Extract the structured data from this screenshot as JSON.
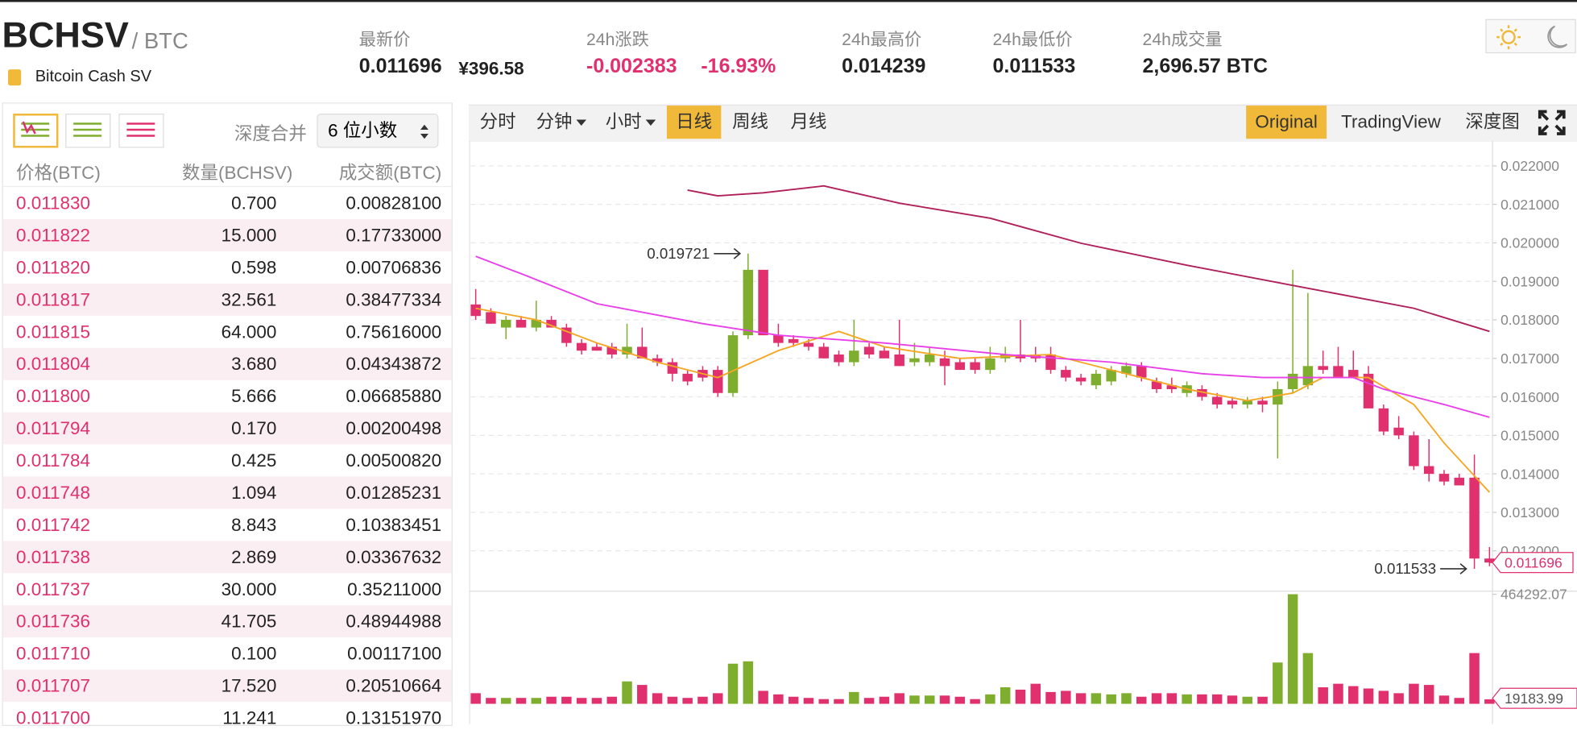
{
  "header": {
    "symbol": "BCHSV",
    "quote": "/ BTC",
    "name": "Bitcoin Cash SV",
    "stats": [
      {
        "label": "最新价",
        "value": "0.011696",
        "extra": "¥396.58"
      },
      {
        "label": "24h涨跌",
        "value": "-0.002383",
        "extra": "-16.93%"
      },
      {
        "label": "24h最高价",
        "value": "0.014239"
      },
      {
        "label": "24h最低价",
        "value": "0.011533"
      },
      {
        "label": "24h成交量",
        "value": "2,696.57 BTC"
      }
    ]
  },
  "orderbook": {
    "merge_label": "深度合并",
    "merge_value": "6 位小数",
    "columns": [
      "价格(BTC)",
      "数量(BCHSV)",
      "成交额(BTC)"
    ],
    "rows": [
      [
        "0.011830",
        "0.700",
        "0.00828100"
      ],
      [
        "0.011822",
        "15.000",
        "0.17733000"
      ],
      [
        "0.011820",
        "0.598",
        "0.00706836"
      ],
      [
        "0.011817",
        "32.561",
        "0.38477334"
      ],
      [
        "0.011815",
        "64.000",
        "0.75616000"
      ],
      [
        "0.011804",
        "3.680",
        "0.04343872"
      ],
      [
        "0.011800",
        "5.666",
        "0.06685880"
      ],
      [
        "0.011794",
        "0.170",
        "0.00200498"
      ],
      [
        "0.011784",
        "0.425",
        "0.00500820"
      ],
      [
        "0.011748",
        "1.094",
        "0.01285231"
      ],
      [
        "0.011742",
        "8.843",
        "0.10383451"
      ],
      [
        "0.011738",
        "2.869",
        "0.03367632"
      ],
      [
        "0.011737",
        "30.000",
        "0.35211000"
      ],
      [
        "0.011736",
        "41.705",
        "0.48944988"
      ],
      [
        "0.011710",
        "0.100",
        "0.00117100"
      ],
      [
        "0.011707",
        "17.520",
        "0.20510664"
      ],
      [
        "0.011700",
        "11.241",
        "0.13151970"
      ]
    ]
  },
  "toolbar": {
    "intervals": [
      "分时",
      "分钟",
      "小时",
      "日线",
      "周线",
      "月线"
    ],
    "active_interval": 3,
    "views": [
      "Original",
      "TradingView",
      "深度图"
    ],
    "active_view": 0
  },
  "chart_data": {
    "type": "candlestick",
    "up_color": "#7fae2e",
    "down_color": "#e0306e",
    "ylim": [
      0.01116,
      0.0226
    ],
    "yticks": [
      {
        "value": 0.012,
        "label": "0.012000"
      },
      {
        "value": 0.013,
        "label": "0.013000"
      },
      {
        "value": 0.014,
        "label": "0.014000"
      },
      {
        "value": 0.015,
        "label": "0.015000"
      },
      {
        "value": 0.016,
        "label": "0.016000"
      },
      {
        "value": 0.017,
        "label": "0.017000"
      },
      {
        "value": 0.018,
        "label": "0.018000"
      },
      {
        "value": 0.019,
        "label": "0.019000"
      },
      {
        "value": 0.02,
        "label": "0.020000"
      },
      {
        "value": 0.021,
        "label": "0.021000"
      },
      {
        "value": 0.022,
        "label": "0.022000"
      }
    ],
    "grid": true,
    "candles": [
      [
        0.0184,
        0.0188,
        0.018,
        0.0181
      ],
      [
        0.0182,
        0.0183,
        0.0179,
        0.0179
      ],
      [
        0.0178,
        0.0181,
        0.0175,
        0.018
      ],
      [
        0.018,
        0.0181,
        0.0178,
        0.0178
      ],
      [
        0.0178,
        0.0185,
        0.0177,
        0.018
      ],
      [
        0.018,
        0.0181,
        0.0178,
        0.0178
      ],
      [
        0.0178,
        0.0179,
        0.0173,
        0.0174
      ],
      [
        0.0174,
        0.0175,
        0.0171,
        0.0172
      ],
      [
        0.0173,
        0.0174,
        0.0172,
        0.0172
      ],
      [
        0.0173,
        0.0174,
        0.017,
        0.0171
      ],
      [
        0.0171,
        0.0179,
        0.017,
        0.0173
      ],
      [
        0.0173,
        0.0178,
        0.017,
        0.017
      ],
      [
        0.017,
        0.0171,
        0.0168,
        0.0169
      ],
      [
        0.0169,
        0.017,
        0.0164,
        0.0166
      ],
      [
        0.0166,
        0.0167,
        0.0163,
        0.0164
      ],
      [
        0.0167,
        0.0168,
        0.0164,
        0.0165
      ],
      [
        0.0167,
        0.0168,
        0.016,
        0.0161
      ],
      [
        0.0161,
        0.0177,
        0.016,
        0.0176
      ],
      [
        0.0176,
        0.019721,
        0.0175,
        0.0193
      ],
      [
        0.0193,
        0.0193,
        0.0176,
        0.0176
      ],
      [
        0.0176,
        0.0179,
        0.0173,
        0.0174
      ],
      [
        0.0175,
        0.0176,
        0.0173,
        0.0174
      ],
      [
        0.0174,
        0.0175,
        0.0172,
        0.0173
      ],
      [
        0.0173,
        0.0174,
        0.017,
        0.017
      ],
      [
        0.0171,
        0.0172,
        0.0168,
        0.0169
      ],
      [
        0.0169,
        0.018,
        0.0168,
        0.0172
      ],
      [
        0.0173,
        0.0174,
        0.017,
        0.0171
      ],
      [
        0.0172,
        0.0173,
        0.017,
        0.017
      ],
      [
        0.0171,
        0.018,
        0.0168,
        0.0168
      ],
      [
        0.0169,
        0.0174,
        0.0168,
        0.017
      ],
      [
        0.0169,
        0.0173,
        0.0168,
        0.0171
      ],
      [
        0.017,
        0.0172,
        0.0163,
        0.0168
      ],
      [
        0.0169,
        0.017,
        0.0167,
        0.0167
      ],
      [
        0.0169,
        0.017,
        0.0166,
        0.0167
      ],
      [
        0.0167,
        0.0173,
        0.0166,
        0.017
      ],
      [
        0.017,
        0.0173,
        0.0169,
        0.0171
      ],
      [
        0.0171,
        0.018,
        0.0169,
        0.017
      ],
      [
        0.0171,
        0.0173,
        0.0169,
        0.017
      ],
      [
        0.0171,
        0.0173,
        0.0166,
        0.0167
      ],
      [
        0.0167,
        0.0168,
        0.0164,
        0.0165
      ],
      [
        0.0165,
        0.0166,
        0.0163,
        0.0164
      ],
      [
        0.0163,
        0.0167,
        0.0162,
        0.0166
      ],
      [
        0.0164,
        0.0168,
        0.0163,
        0.0167
      ],
      [
        0.0166,
        0.0169,
        0.0165,
        0.0168
      ],
      [
        0.0168,
        0.0169,
        0.0164,
        0.0165
      ],
      [
        0.0164,
        0.0165,
        0.0161,
        0.0162
      ],
      [
        0.0163,
        0.0165,
        0.0161,
        0.0162
      ],
      [
        0.0161,
        0.0164,
        0.016,
        0.0163
      ],
      [
        0.0162,
        0.0163,
        0.0159,
        0.016
      ],
      [
        0.016,
        0.0161,
        0.0157,
        0.0158
      ],
      [
        0.0159,
        0.016,
        0.0157,
        0.0158
      ],
      [
        0.0158,
        0.016,
        0.0157,
        0.0159
      ],
      [
        0.0159,
        0.016,
        0.0156,
        0.0158
      ],
      [
        0.0158,
        0.0164,
        0.0144,
        0.0162
      ],
      [
        0.0162,
        0.0193,
        0.0161,
        0.0166
      ],
      [
        0.0163,
        0.0187,
        0.0162,
        0.0168
      ],
      [
        0.0168,
        0.0172,
        0.0166,
        0.0167
      ],
      [
        0.0168,
        0.0173,
        0.0165,
        0.0165
      ],
      [
        0.0167,
        0.0172,
        0.0165,
        0.0165
      ],
      [
        0.0166,
        0.0168,
        0.0157,
        0.0157
      ],
      [
        0.0157,
        0.0158,
        0.015,
        0.0151
      ],
      [
        0.0152,
        0.0155,
        0.0149,
        0.015
      ],
      [
        0.015,
        0.0151,
        0.0141,
        0.0142
      ],
      [
        0.0142,
        0.0149,
        0.0138,
        0.014
      ],
      [
        0.014,
        0.0141,
        0.0137,
        0.0138
      ],
      [
        0.0139,
        0.014,
        0.0137,
        0.0137
      ],
      [
        0.0139,
        0.0145,
        0.011533,
        0.0118
      ],
      [
        0.0118,
        0.0121,
        0.0116,
        0.011696
      ]
    ],
    "volume_ylim": [
      0,
      464292.07
    ],
    "volume_yticks": [
      464292.07
    ],
    "volumes": [
      45000,
      25000,
      25000,
      25000,
      25000,
      30000,
      30000,
      25000,
      25000,
      30000,
      95000,
      80000,
      45000,
      30000,
      25000,
      30000,
      45000,
      170000,
      180000,
      55000,
      40000,
      30000,
      25000,
      20000,
      20000,
      50000,
      25000,
      30000,
      45000,
      35000,
      35000,
      35000,
      30000,
      20000,
      40000,
      70000,
      60000,
      85000,
      50000,
      55000,
      45000,
      45000,
      40000,
      45000,
      30000,
      45000,
      45000,
      40000,
      40000,
      40000,
      35000,
      30000,
      30000,
      175000,
      464292.07,
      215000,
      70000,
      85000,
      75000,
      65000,
      55000,
      45000,
      85000,
      80000,
      35000,
      25000,
      215000,
      19183.99
    ],
    "series": [
      {
        "color": "#f5a623",
        "x": [
          0,
          4,
          8,
          12,
          16,
          20,
          24,
          27,
          32,
          38,
          42,
          47,
          51,
          54,
          56,
          59,
          62,
          64,
          67
        ],
        "values": [
          0.0183,
          0.018,
          0.0174,
          0.0169,
          0.0165,
          0.0172,
          0.0177,
          0.0173,
          0.017,
          0.0171,
          0.0167,
          0.0162,
          0.0159,
          0.0161,
          0.0165,
          0.0165,
          0.0158,
          0.0148,
          0.01352
        ]
      },
      {
        "color": "#e83fe8",
        "x": [
          0,
          3,
          8,
          15,
          20,
          27,
          35,
          42,
          48,
          52,
          58,
          60,
          64,
          67
        ],
        "values": [
          0.01965,
          0.0192,
          0.01842,
          0.0179,
          0.0176,
          0.0174,
          0.0171,
          0.0169,
          0.0166,
          0.0165,
          0.0165,
          0.0162,
          0.0158,
          0.01547
        ]
      },
      {
        "color": "#b0205a",
        "x": [
          14,
          16,
          19,
          23,
          28,
          34,
          40,
          47,
          55,
          62,
          67
        ],
        "values": [
          0.02137,
          0.02122,
          0.0213,
          0.02148,
          0.02103,
          0.02064,
          0.01999,
          0.01942,
          0.01882,
          0.0183,
          0.0177
        ]
      }
    ]
  }
}
